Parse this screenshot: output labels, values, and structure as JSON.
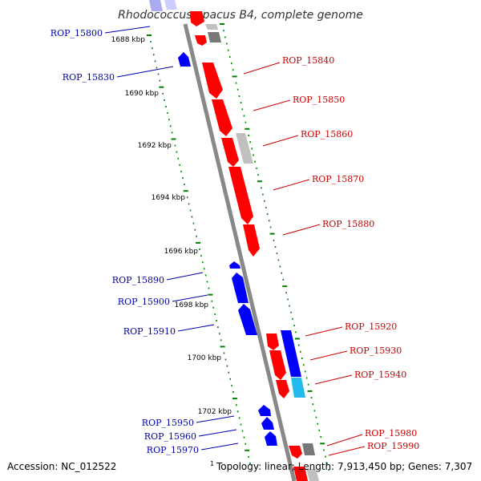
{
  "title": "Rhodococcus opacus B4, complete genome",
  "accession": "Accession: NC_012522",
  "footnote_marker": "1",
  "topology": "Topology: linear; Length: 7,913,450 bp; Genes: 7,307",
  "colors": {
    "forward": "#ff0000",
    "reverse": "#0000ff",
    "forward_label": "#cc0000",
    "reverse_label": "#0000aa",
    "ruler": "#008000",
    "axis": "#888888",
    "pseudo": "#c0c0c0",
    "pseudo_dark": "#777777",
    "cyan": "#22bbee"
  },
  "scale": {
    "unit": "kbp",
    "ticks": [
      "1688 kbp",
      "1690 kbp",
      "1692 kbp",
      "1694 kbp",
      "1696 kbp",
      "1698 kbp",
      "1700 kbp",
      "1702 kbp"
    ]
  },
  "gene_labels": {
    "reverse": [
      "ROP_15800",
      "ROP_15830",
      "ROP_15890",
      "ROP_15900",
      "ROP_15910",
      "ROP_15950",
      "ROP_15960",
      "ROP_15970"
    ],
    "forward": [
      "ROP_15840",
      "ROP_15850",
      "ROP_15860",
      "ROP_15870",
      "ROP_15880",
      "ROP_15920",
      "ROP_15930",
      "ROP_15940",
      "ROP_15980",
      "ROP_15990"
    ]
  }
}
